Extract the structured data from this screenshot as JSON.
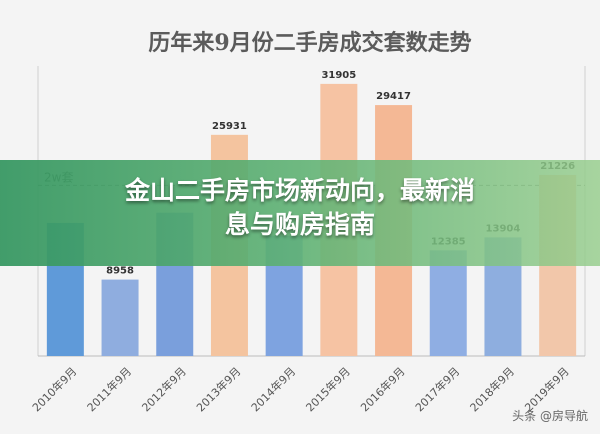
{
  "chart_data": {
    "type": "bar",
    "title": "历年来9月份二手房成交套数走势",
    "categories": [
      "2010年9月",
      "2011年9月",
      "2012年9月",
      "2013年9月",
      "2014年9月",
      "2015年9月",
      "2016年9月",
      "2017年9月",
      "2018年9月",
      "2019年9月"
    ],
    "values": [
      15600,
      8958,
      16800,
      25931,
      14100,
      31905,
      29417,
      12385,
      13904,
      21226
    ],
    "value_labels": [
      "",
      "8958",
      "",
      "25931",
      "",
      "31905",
      "29417",
      "12385",
      "13904",
      "21226"
    ],
    "bar_colors": [
      "#5f9ad9",
      "#8faddf",
      "#7a9fdc",
      "#f4c49f",
      "#7ea3e0",
      "#f6c3a3",
      "#f4b895",
      "#8faee3",
      "#8eaedf",
      "#f2c7aa"
    ],
    "ylim": [
      0,
      34000
    ],
    "reference_line_value": 20000,
    "reference_line_label": "2w套",
    "grid": false,
    "legend": "none"
  },
  "banner": {
    "line1": "金山二手房市场新动向，最新消",
    "line2": "息与购房指南"
  },
  "watermark": "头条 @房导航"
}
